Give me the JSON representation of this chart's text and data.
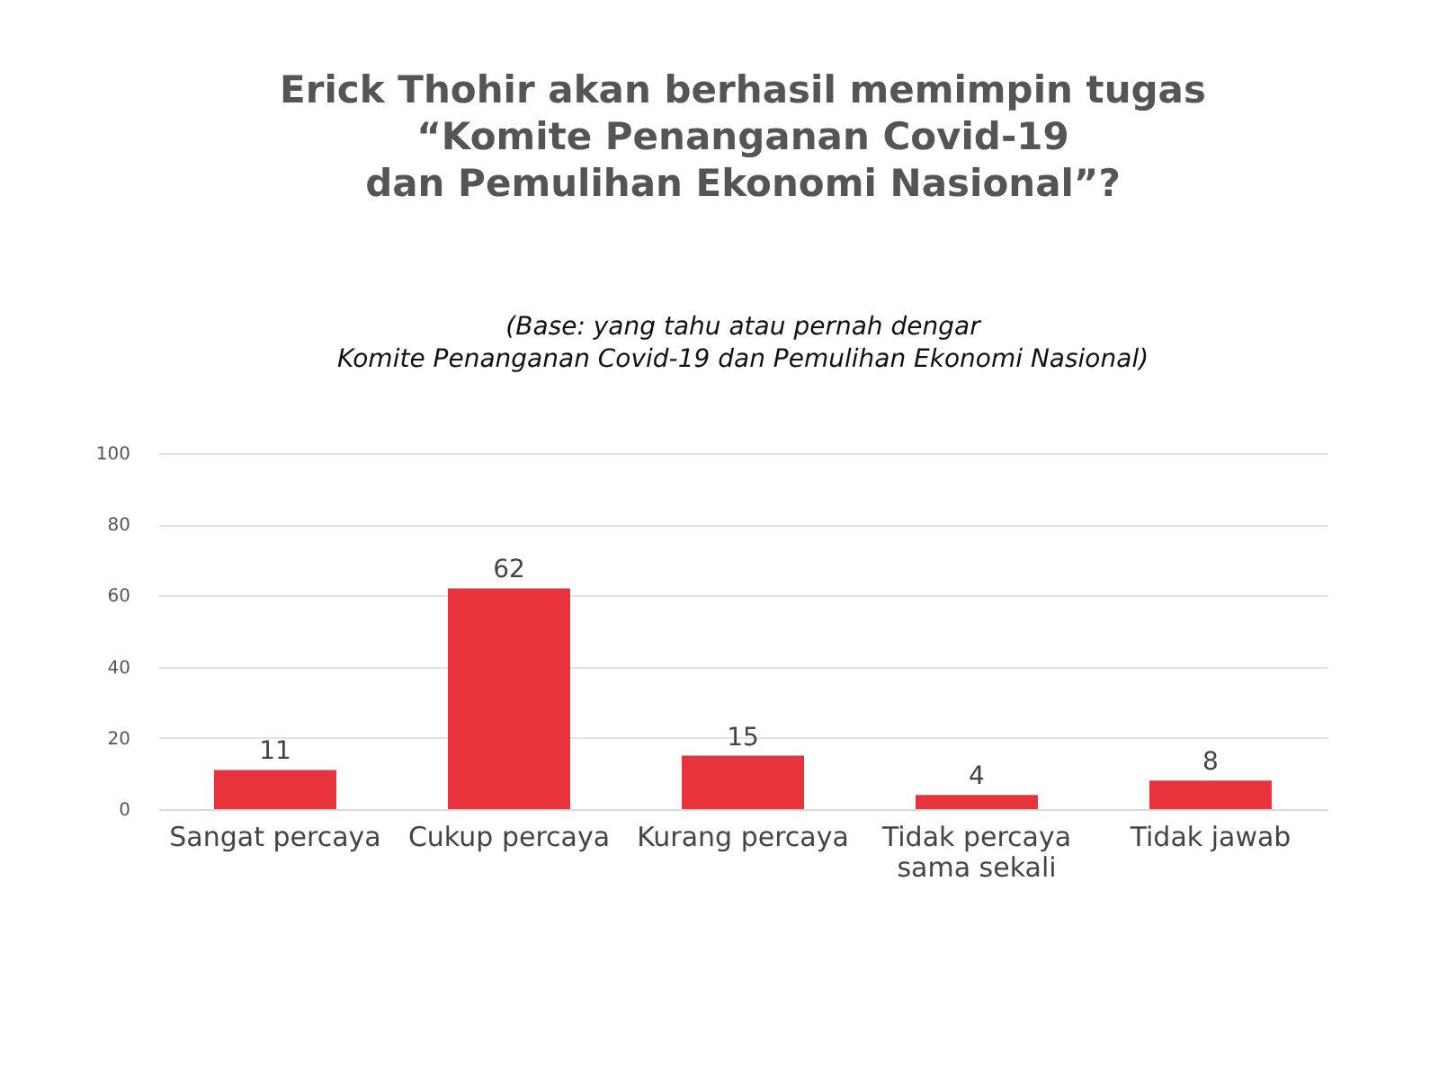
{
  "chart_data": {
    "type": "bar",
    "title": "Erick Thohir akan berhasil memimpin tugas\n“Komite Penanganan Covid-19\ndan Pemulihan Ekonomi Nasional”?",
    "subtitle": "(Base: yang tahu atau pernah dengar\nKomite Penanganan Covid-19 dan Pemulihan Ekonomi Nasional)",
    "categories": [
      "Sangat percaya",
      "Cukup percaya",
      "Kurang percaya",
      "Tidak percaya sama sekali",
      "Tidak jawab"
    ],
    "values": [
      11,
      62,
      15,
      4,
      8
    ],
    "color": "#e8333c",
    "ylim": [
      0,
      100
    ],
    "yticks": [
      0,
      20,
      40,
      60,
      80,
      100
    ],
    "grid": "y",
    "data_labels": true
  }
}
